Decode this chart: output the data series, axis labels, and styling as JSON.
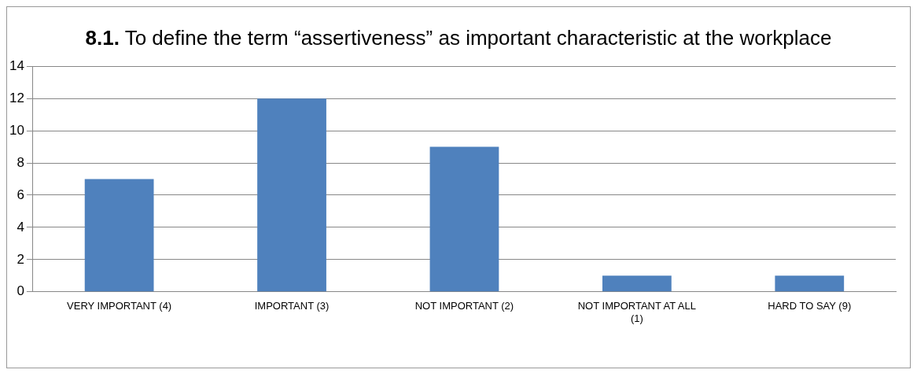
{
  "chart_data": {
    "type": "bar",
    "title": "8.1. To define the term “assertiveness” as important characteristic at the workplace",
    "categories": [
      "VERY IMPORTANT (4)",
      "IMPORTANT (3)",
      "NOT IMPORTANT (2)",
      "NOT IMPORTANT AT ALL (1)",
      "HARD TO SAY (9)"
    ],
    "values": [
      7,
      12,
      9,
      1,
      1
    ],
    "color": "#4f81bd",
    "ylim": [
      0,
      14
    ],
    "yticks": [
      0,
      2,
      4,
      6,
      8,
      10,
      12,
      14
    ],
    "grid": "y",
    "legend": false
  }
}
